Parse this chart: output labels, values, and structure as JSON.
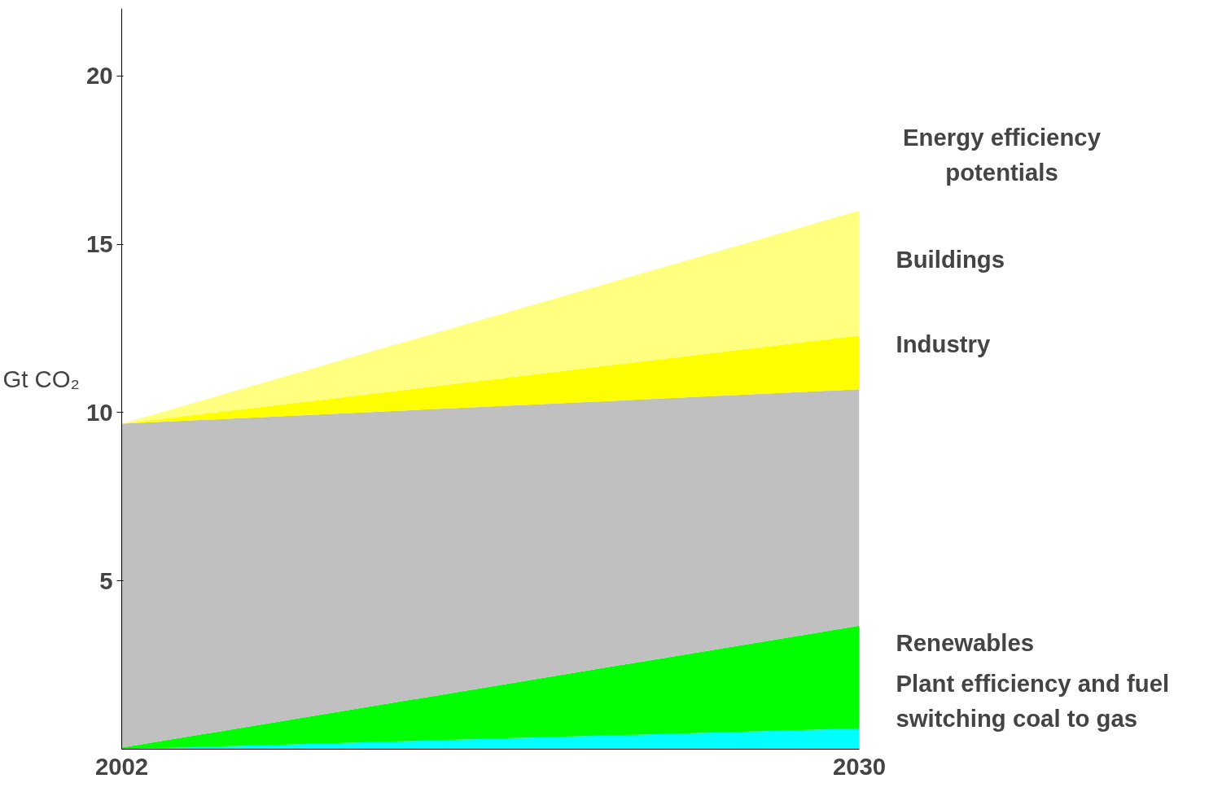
{
  "chart_data": {
    "type": "area",
    "stacked": true,
    "x": [
      2002,
      2030
    ],
    "xlim": [
      2002,
      2030
    ],
    "xticks": [
      2002,
      2030
    ],
    "ylim": [
      0,
      22
    ],
    "yticks": [
      5,
      10,
      15,
      20
    ],
    "ylabel": "Gt CO₂",
    "grid": false,
    "series": [
      {
        "name": "Plant efficiency and fuel switching coal to gas",
        "color": "#00ffff",
        "values": [
          0,
          0.62
        ]
      },
      {
        "name": "Renewables",
        "color": "#00ff00",
        "values": [
          0.05,
          3.05
        ]
      },
      {
        "color": "#c0c0c0",
        "values": [
          9.62,
          7.02
        ]
      },
      {
        "name": "Industry",
        "color": "#ffff00",
        "values": [
          0,
          1.6
        ]
      },
      {
        "name": "Buildings",
        "color": "#ffff80",
        "values": [
          0,
          3.71
        ]
      }
    ],
    "annotations": [
      "Energy efficiency potentials"
    ]
  }
}
